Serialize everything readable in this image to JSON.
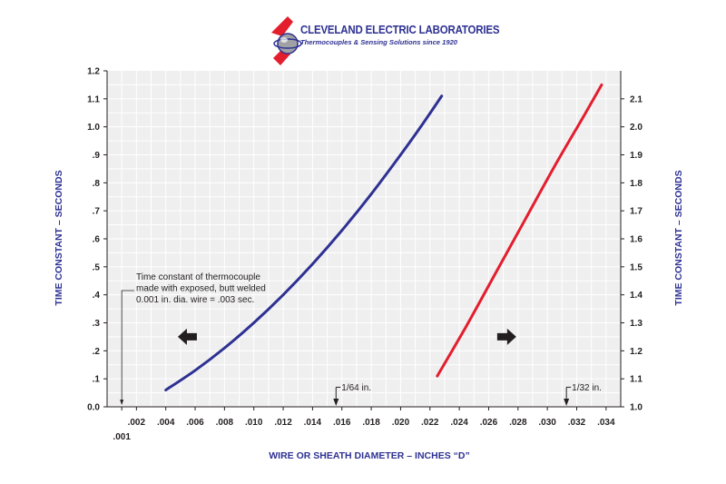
{
  "logo": {
    "title": "CLEVELAND ELECTRIC LABORATORIES",
    "subtitle": "Thermocouples & Sensing Solutions since 1920"
  },
  "colors": {
    "navy": "#2e3192",
    "red": "#e31e2d",
    "grid_bg": "#efeff0",
    "grid_line": "#ffffff",
    "text": "#231f20"
  },
  "chart_data": {
    "type": "line",
    "title": "",
    "xlabel": "WIRE OR SHEATH DIAMETER – INCHES “D”",
    "ylabel_left": "TIME CONSTANT – SECONDS",
    "ylabel_right": "TIME CONSTANT – SECONDS",
    "xlim": [
      0,
      0.035
    ],
    "ylim_left": [
      0,
      1.2
    ],
    "ylim_right": [
      1.0,
      2.2
    ],
    "grid": true,
    "x_ticks": [
      {
        "value": 0.001,
        "label": ".001",
        "row": "lower"
      },
      {
        "value": 0.002,
        "label": ".002"
      },
      {
        "value": 0.004,
        "label": ".004"
      },
      {
        "value": 0.006,
        "label": ".006"
      },
      {
        "value": 0.008,
        "label": ".008"
      },
      {
        "value": 0.01,
        "label": ".010"
      },
      {
        "value": 0.012,
        "label": ".012"
      },
      {
        "value": 0.014,
        "label": ".014"
      },
      {
        "value": 0.016,
        "label": ".016"
      },
      {
        "value": 0.018,
        "label": ".018"
      },
      {
        "value": 0.02,
        "label": ".020"
      },
      {
        "value": 0.022,
        "label": ".022"
      },
      {
        "value": 0.024,
        "label": ".024"
      },
      {
        "value": 0.026,
        "label": ".026"
      },
      {
        "value": 0.028,
        "label": ".028"
      },
      {
        "value": 0.03,
        "label": ".030"
      },
      {
        "value": 0.032,
        "label": ".032"
      },
      {
        "value": 0.034,
        "label": ".034"
      }
    ],
    "y_ticks_left": [
      {
        "value": 0.0,
        "label": "0.0"
      },
      {
        "value": 0.1,
        "label": ".1"
      },
      {
        "value": 0.2,
        "label": ".2"
      },
      {
        "value": 0.3,
        "label": ".3"
      },
      {
        "value": 0.4,
        "label": ".4"
      },
      {
        "value": 0.5,
        "label": ".5"
      },
      {
        "value": 0.6,
        "label": ".6"
      },
      {
        "value": 0.7,
        "label": ".7"
      },
      {
        "value": 0.8,
        "label": ".8"
      },
      {
        "value": 0.9,
        "label": ".9"
      },
      {
        "value": 1.0,
        "label": "1.0"
      },
      {
        "value": 1.1,
        "label": "1.1"
      },
      {
        "value": 1.2,
        "label": "1.2"
      }
    ],
    "y_ticks_right": [
      {
        "value": 1.0,
        "label": "1.0"
      },
      {
        "value": 1.1,
        "label": "1.1"
      },
      {
        "value": 1.2,
        "label": "1.2"
      },
      {
        "value": 1.3,
        "label": "1.3"
      },
      {
        "value": 1.4,
        "label": "1.4"
      },
      {
        "value": 1.5,
        "label": "1.5"
      },
      {
        "value": 1.6,
        "label": "1.6"
      },
      {
        "value": 1.7,
        "label": "1.7"
      },
      {
        "value": 1.8,
        "label": "1.8"
      },
      {
        "value": 1.9,
        "label": "1.9"
      },
      {
        "value": 2.0,
        "label": "2.0"
      },
      {
        "value": 2.1,
        "label": "2.1"
      }
    ],
    "series": [
      {
        "name": "left-axis-curve",
        "axis": "left",
        "color": "#2e3192",
        "x": [
          0.004,
          0.006,
          0.008,
          0.01,
          0.012,
          0.014,
          0.016,
          0.018,
          0.02,
          0.0215,
          0.0228
        ],
        "y": [
          0.06,
          0.13,
          0.21,
          0.3,
          0.4,
          0.51,
          0.63,
          0.76,
          0.9,
          1.01,
          1.11
        ]
      },
      {
        "name": "right-axis-curve",
        "axis": "right",
        "color": "#e31e2d",
        "x": [
          0.0225,
          0.0245,
          0.0265,
          0.0285,
          0.0305,
          0.0325,
          0.0337
        ],
        "y": [
          1.11,
          1.29,
          1.48,
          1.67,
          1.86,
          2.04,
          2.15
        ]
      }
    ],
    "annotations": [
      {
        "text": "1/64 in.",
        "x": 0.0156,
        "axis": "left",
        "y": 0.07
      },
      {
        "text": "1/32 in.",
        "x": 0.0313,
        "axis": "left",
        "y": 0.07
      }
    ],
    "note": {
      "lines": [
        "Time constant of thermocouple",
        "made with exposed, butt welded",
        "0.001 in. dia. wire = .003 sec."
      ],
      "x": 0.001,
      "y": 0.003
    },
    "arrows": [
      {
        "direction": "left",
        "axis": "left",
        "x": 0.0055,
        "y": 0.25
      },
      {
        "direction": "right",
        "axis": "right",
        "x": 0.0272,
        "y": 1.25
      }
    ]
  }
}
